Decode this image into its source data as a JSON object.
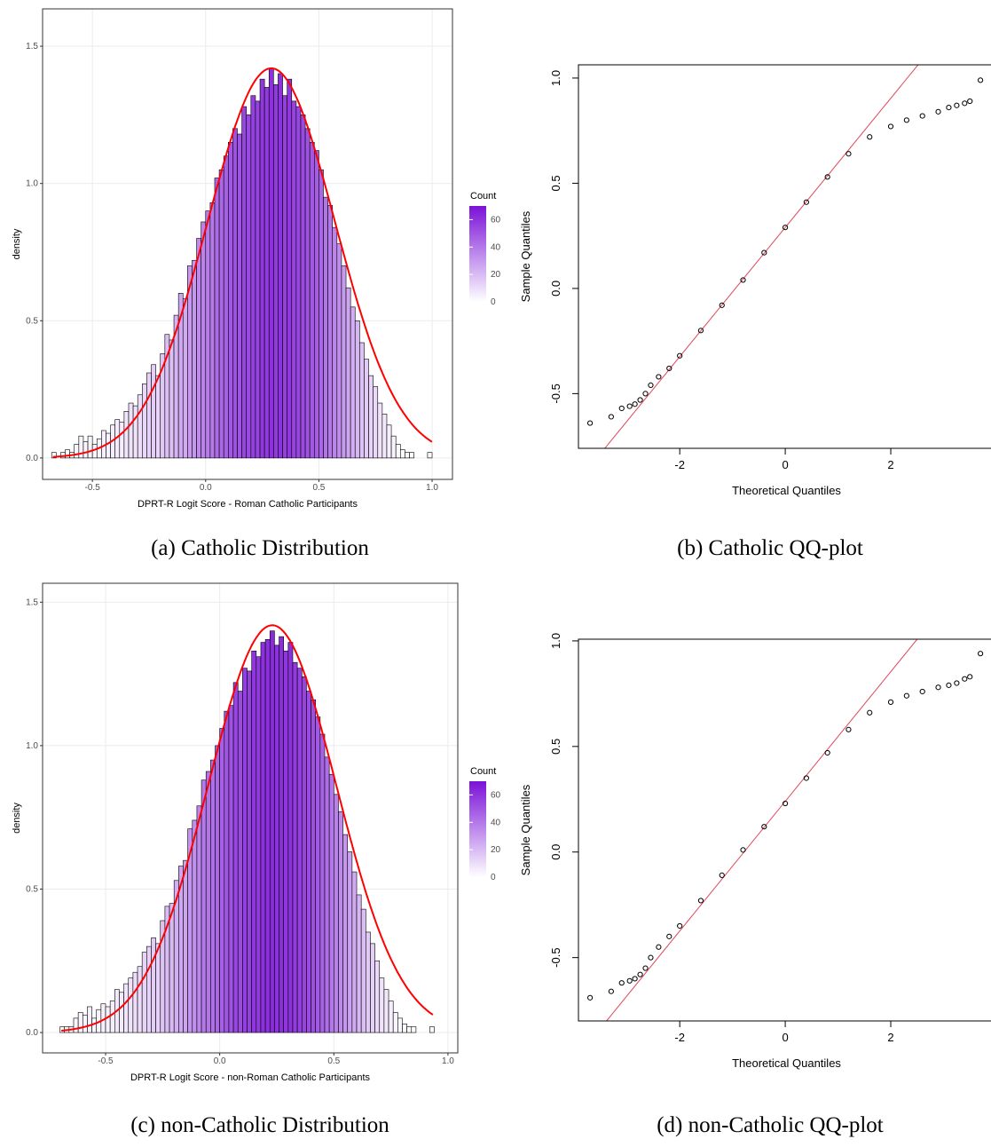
{
  "chart_data": [
    {
      "type": "histogram",
      "caption": "(a) Catholic Distribution",
      "xlabel": "DPRT-R Logit Score - Roman Catholic Participants",
      "ylabel": "density",
      "bins": [
        -0.68,
        -0.66,
        -0.64,
        -0.62,
        -0.6,
        -0.58,
        -0.56,
        -0.54,
        -0.52,
        -0.5,
        -0.48,
        -0.46,
        -0.44,
        -0.42,
        -0.4,
        -0.38,
        -0.36,
        -0.34,
        -0.32,
        -0.3,
        -0.28,
        -0.26,
        -0.24,
        -0.22,
        -0.2,
        -0.18,
        -0.16,
        -0.14,
        -0.12,
        -0.1,
        -0.08,
        -0.06,
        -0.04,
        -0.02,
        0,
        0.02,
        0.04,
        0.06,
        0.08,
        0.1,
        0.12,
        0.14,
        0.16,
        0.18,
        0.2,
        0.22,
        0.24,
        0.26,
        0.28,
        0.3,
        0.32,
        0.34,
        0.36,
        0.38,
        0.4,
        0.42,
        0.44,
        0.46,
        0.48,
        0.5,
        0.52,
        0.54,
        0.56,
        0.58,
        0.6,
        0.62,
        0.64,
        0.66,
        0.68,
        0.7,
        0.72,
        0.74,
        0.76,
        0.78,
        0.8,
        0.82,
        0.84,
        0.86,
        0.88,
        0.9,
        0.92,
        0.94,
        0.96,
        0.98,
        1.0
      ],
      "values": [
        0.02,
        0.0,
        0.02,
        0.03,
        0.02,
        0.05,
        0.08,
        0.06,
        0.08,
        0.05,
        0.07,
        0.1,
        0.09,
        0.12,
        0.14,
        0.13,
        0.17,
        0.2,
        0.19,
        0.23,
        0.27,
        0.31,
        0.34,
        0.3,
        0.38,
        0.45,
        0.43,
        0.52,
        0.6,
        0.58,
        0.7,
        0.72,
        0.8,
        0.86,
        0.9,
        0.93,
        1.02,
        1.05,
        1.1,
        1.15,
        1.2,
        1.18,
        1.28,
        1.25,
        1.32,
        1.3,
        1.38,
        1.35,
        1.42,
        1.36,
        1.4,
        1.32,
        1.38,
        1.3,
        1.28,
        1.25,
        1.2,
        1.15,
        1.12,
        1.05,
        0.95,
        0.92,
        0.84,
        0.78,
        0.7,
        0.62,
        0.55,
        0.5,
        0.42,
        0.36,
        0.3,
        0.26,
        0.2,
        0.16,
        0.12,
        0.08,
        0.05,
        0.03,
        0.02,
        0.02,
        0,
        0,
        0,
        0.02
      ],
      "curve": {
        "color": "#ff0000",
        "mean": 0.29,
        "sd": 0.281
      },
      "fill_scale": {
        "title": "Count",
        "lim": [
          0,
          70
        ],
        "ticks": [
          0,
          20,
          40,
          60
        ],
        "low": "#ffffff",
        "high": "#7b12d8"
      },
      "xlim": [
        -0.72,
        1.09
      ],
      "ylim": [
        -0.078,
        1.636
      ],
      "xticks": [
        {
          "value": -0.5,
          "label": "-0.5"
        },
        {
          "value": 0,
          "label": "0.0"
        },
        {
          "value": 0.5,
          "label": "0.5"
        },
        {
          "value": 1,
          "label": "1.0"
        }
      ],
      "yticks": [
        {
          "value": 0,
          "label": "0.0"
        },
        {
          "value": 0.5,
          "label": "0.5"
        },
        {
          "value": 1,
          "label": "1.0"
        },
        {
          "value": 1.5,
          "label": "1.5"
        }
      ],
      "grid": true
    },
    {
      "type": "qq",
      "caption": "(b) Catholic QQ-plot",
      "xlabel": "Theoretical Quantiles",
      "ylabel": "Sample Quantiles",
      "x": [
        -3.7,
        -3.3,
        -3.1,
        -2.95,
        -2.85,
        -2.75,
        -2.65,
        -2.55,
        -2.4,
        -2.2,
        -2,
        -1.6,
        -1.2,
        -0.8,
        -0.4,
        0,
        0.4,
        0.8,
        1.2,
        1.6,
        2,
        2.3,
        2.6,
        2.9,
        3.1,
        3.25,
        3.4,
        3.5,
        3.7
      ],
      "y": [
        -0.64,
        -0.61,
        -0.57,
        -0.56,
        -0.55,
        -0.53,
        -0.5,
        -0.46,
        -0.42,
        -0.38,
        -0.32,
        -0.2,
        -0.08,
        0.04,
        0.17,
        0.29,
        0.41,
        0.53,
        0.64,
        0.72,
        0.77,
        0.8,
        0.82,
        0.84,
        0.86,
        0.87,
        0.88,
        0.89,
        0.99
      ],
      "ref_line": {
        "color": "#e0475a",
        "intercept": 0.29,
        "slope": 0.307
      },
      "xlim": [
        -3.92,
        3.9
      ],
      "ylim": [
        -0.76,
        1.063
      ],
      "xticks": [
        -2,
        0,
        2
      ],
      "yticks": [
        {
          "value": -0.5,
          "label": "-0.5"
        },
        {
          "value": 0,
          "label": "0.0"
        },
        {
          "value": 0.5,
          "label": "0.5"
        },
        {
          "value": 1,
          "label": "1.0"
        }
      ]
    },
    {
      "type": "histogram",
      "caption": "(c) non-Catholic Distribution",
      "xlabel": "DPRT-R Logit Score - non-Roman Catholic Participants",
      "ylabel": "density",
      "bins": [
        -0.7,
        -0.68,
        -0.66,
        -0.64,
        -0.62,
        -0.6,
        -0.58,
        -0.56,
        -0.54,
        -0.52,
        -0.5,
        -0.48,
        -0.46,
        -0.44,
        -0.42,
        -0.4,
        -0.38,
        -0.36,
        -0.34,
        -0.32,
        -0.3,
        -0.28,
        -0.26,
        -0.24,
        -0.22,
        -0.2,
        -0.18,
        -0.16,
        -0.14,
        -0.12,
        -0.1,
        -0.08,
        -0.06,
        -0.04,
        -0.02,
        0,
        0.02,
        0.04,
        0.06,
        0.08,
        0.1,
        0.12,
        0.14,
        0.16,
        0.18,
        0.2,
        0.22,
        0.24,
        0.26,
        0.28,
        0.3,
        0.32,
        0.34,
        0.36,
        0.38,
        0.4,
        0.42,
        0.44,
        0.46,
        0.48,
        0.5,
        0.52,
        0.54,
        0.56,
        0.58,
        0.6,
        0.62,
        0.64,
        0.66,
        0.68,
        0.7,
        0.72,
        0.74,
        0.76,
        0.78,
        0.8,
        0.82,
        0.84,
        0.86,
        0.88,
        0.9,
        0.92,
        0.94
      ],
      "values": [
        0.02,
        0.02,
        0.02,
        0.05,
        0.07,
        0.06,
        0.09,
        0.05,
        0.08,
        0.1,
        0.09,
        0.11,
        0.15,
        0.14,
        0.17,
        0.19,
        0.21,
        0.23,
        0.28,
        0.3,
        0.33,
        0.31,
        0.39,
        0.44,
        0.45,
        0.53,
        0.58,
        0.6,
        0.71,
        0.74,
        0.79,
        0.88,
        0.91,
        0.95,
        1.0,
        1.06,
        1.12,
        1.14,
        1.22,
        1.19,
        1.27,
        1.26,
        1.33,
        1.31,
        1.36,
        1.37,
        1.4,
        1.35,
        1.38,
        1.33,
        1.36,
        1.29,
        1.27,
        1.24,
        1.19,
        1.16,
        1.1,
        1.04,
        0.96,
        0.9,
        0.83,
        0.77,
        0.69,
        0.63,
        0.56,
        0.48,
        0.43,
        0.35,
        0.31,
        0.25,
        0.19,
        0.15,
        0.11,
        0.07,
        0.05,
        0.03,
        0.02,
        0.02,
        0,
        0,
        0,
        0.02
      ],
      "curve": {
        "color": "#ff0000",
        "mean": 0.23,
        "sd": 0.281
      },
      "fill_scale": {
        "title": "Count",
        "lim": [
          0,
          70
        ],
        "ticks": [
          0,
          20,
          40,
          60
        ],
        "low": "#ffffff",
        "high": "#7b12d8"
      },
      "xlim": [
        -0.776,
        1.043
      ],
      "ylim": [
        -0.071,
        1.566
      ],
      "xticks": [
        {
          "value": -0.5,
          "label": "-0.5"
        },
        {
          "value": 0,
          "label": "0.0"
        },
        {
          "value": 0.5,
          "label": "0.5"
        },
        {
          "value": 1,
          "label": "1.0"
        }
      ],
      "yticks": [
        {
          "value": 0,
          "label": "0.0"
        },
        {
          "value": 0.5,
          "label": "0.5"
        },
        {
          "value": 1,
          "label": "1.0"
        },
        {
          "value": 1.5,
          "label": "1.5"
        }
      ],
      "grid": true
    },
    {
      "type": "qq",
      "caption": "(d) non-Catholic QQ-plot",
      "xlabel": "Theoretical Quantiles",
      "ylabel": "Sample Quantiles",
      "x": [
        -3.7,
        -3.3,
        -3.1,
        -2.95,
        -2.85,
        -2.75,
        -2.65,
        -2.55,
        -2.4,
        -2.2,
        -2,
        -1.6,
        -1.2,
        -0.8,
        -0.4,
        0,
        0.4,
        0.8,
        1.2,
        1.6,
        2,
        2.3,
        2.6,
        2.9,
        3.1,
        3.25,
        3.4,
        3.5,
        3.7
      ],
      "y": [
        -0.69,
        -0.66,
        -0.62,
        -0.61,
        -0.6,
        -0.58,
        -0.55,
        -0.5,
        -0.45,
        -0.4,
        -0.35,
        -0.23,
        -0.11,
        0.01,
        0.12,
        0.23,
        0.35,
        0.47,
        0.58,
        0.66,
        0.71,
        0.74,
        0.76,
        0.78,
        0.79,
        0.8,
        0.82,
        0.83,
        0.94
      ],
      "ref_line": {
        "color": "#e0475a",
        "intercept": 0.24,
        "slope": 0.307
      },
      "xlim": [
        -3.92,
        3.9
      ],
      "ylim": [
        -0.8,
        1.008
      ],
      "xticks": [
        -2,
        0,
        2
      ],
      "yticks": [
        {
          "value": -0.5,
          "label": "-0.5"
        },
        {
          "value": 0,
          "label": "0.0"
        },
        {
          "value": 0.5,
          "label": "0.5"
        },
        {
          "value": 1,
          "label": "1.0"
        }
      ]
    }
  ]
}
